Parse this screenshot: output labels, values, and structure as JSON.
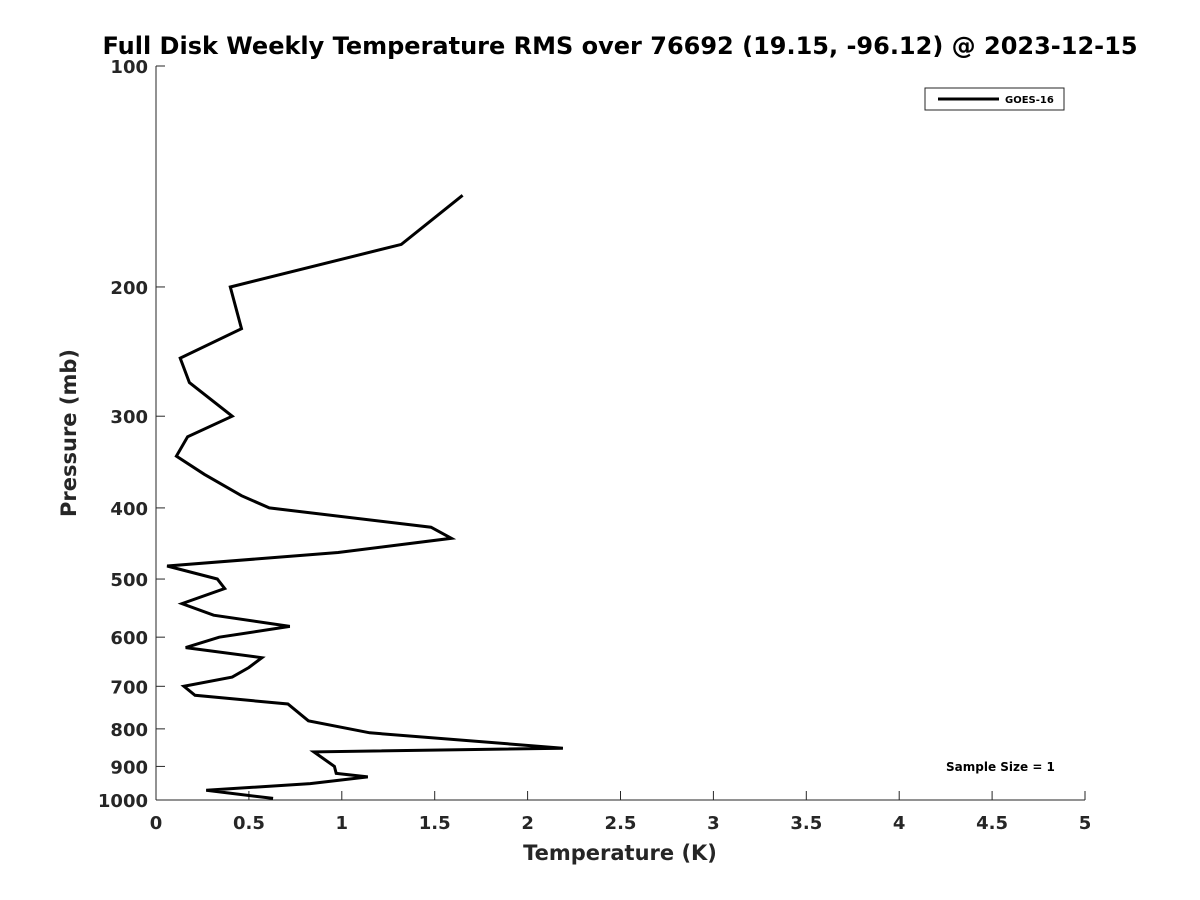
{
  "chart_data": {
    "type": "line",
    "title": "Full Disk Weekly Temperature RMS over 76692 (19.15, -96.12) @ 2023-12-15",
    "xlabel": "Temperature (K)",
    "ylabel": "Pressure (mb)",
    "xlim": [
      0,
      5
    ],
    "ylim": [
      100,
      1000
    ],
    "yscale": "log",
    "yreversed": true,
    "xticks": [
      0,
      0.5,
      1,
      1.5,
      2,
      2.5,
      3,
      3.5,
      4,
      4.5,
      5
    ],
    "xticklabels": [
      "0",
      "0.5",
      "1",
      "1.5",
      "2",
      "2.5",
      "3",
      "3.5",
      "4",
      "4.5",
      "5"
    ],
    "yticks": [
      100,
      200,
      300,
      400,
      500,
      600,
      700,
      800,
      900,
      1000
    ],
    "yticklabels": [
      "100",
      "200",
      "300",
      "400",
      "500",
      "600",
      "700",
      "800",
      "900",
      "1000"
    ],
    "grid": false,
    "legend": {
      "placement": "top-right",
      "entries": [
        "GOES-16"
      ]
    },
    "annotations": [
      "Sample Size = 1"
    ],
    "series": [
      {
        "name": "GOES-16",
        "color": "#000000",
        "points": [
          [
            1.65,
            150
          ],
          [
            1.32,
            175
          ],
          [
            0.4,
            200
          ],
          [
            0.46,
            228
          ],
          [
            0.13,
            250
          ],
          [
            0.18,
            270
          ],
          [
            0.41,
            300
          ],
          [
            0.17,
            320
          ],
          [
            0.11,
            340
          ],
          [
            0.26,
            360
          ],
          [
            0.46,
            385
          ],
          [
            0.61,
            400
          ],
          [
            1.48,
            425
          ],
          [
            1.59,
            440
          ],
          [
            0.98,
            460
          ],
          [
            0.06,
            480
          ],
          [
            0.33,
            500
          ],
          [
            0.37,
            515
          ],
          [
            0.14,
            540
          ],
          [
            0.31,
            560
          ],
          [
            0.72,
            580
          ],
          [
            0.34,
            600
          ],
          [
            0.16,
            620
          ],
          [
            0.57,
            640
          ],
          [
            0.5,
            660
          ],
          [
            0.41,
            680
          ],
          [
            0.15,
            700
          ],
          [
            0.21,
            720
          ],
          [
            0.71,
            740
          ],
          [
            0.82,
            780
          ],
          [
            1.15,
            810
          ],
          [
            2.19,
            850
          ],
          [
            0.85,
            860
          ],
          [
            0.96,
            900
          ],
          [
            0.97,
            920
          ],
          [
            1.14,
            930
          ],
          [
            0.83,
            950
          ],
          [
            0.27,
            970
          ],
          [
            0.63,
            995
          ]
        ]
      }
    ]
  }
}
